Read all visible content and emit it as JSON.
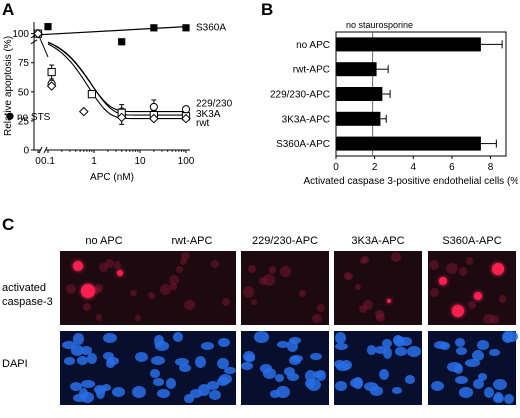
{
  "figure": {
    "panel_a": {
      "letter": "A",
      "chart_data": {
        "type": "scatter",
        "ylabel": "Relative apoptosis (%)",
        "xlabel": "APC (nM)",
        "x_scale": "log",
        "ylim": [
          0,
          110
        ],
        "y_ticks": [
          "0",
          "25",
          "50",
          "75",
          "100"
        ],
        "x_ticks": [
          "0",
          "0.1",
          "1",
          "10",
          "100"
        ],
        "series": [
          {
            "name": "S360A",
            "marker": "filled-square",
            "x": [
              0,
              0.1,
              4,
              20,
              100
            ],
            "y": [
              100,
              106,
              93,
              105,
              105
            ]
          },
          {
            "name": "229/230",
            "marker": "open-circle",
            "x": [
              0,
              0.12,
              4,
              20,
              100
            ],
            "y": [
              100,
              57,
              33,
              37,
              35
            ]
          },
          {
            "name": "3K3A",
            "marker": "open-square",
            "x": [
              0,
              0.12,
              0.9,
              4,
              20,
              100
            ],
            "y": [
              100,
              67,
              48,
              32,
              30,
              29
            ]
          },
          {
            "name": "rwt",
            "marker": "open-diamond",
            "x": [
              0,
              0.12,
              0.6,
              4,
              20,
              100
            ],
            "y": [
              100,
              55,
              33,
              28,
              27,
              27
            ]
          },
          {
            "name": "no STS",
            "marker": "filled-circle",
            "x": [
              0
            ],
            "y": [
              29
            ]
          }
        ],
        "labels": [
          "S360A",
          "229/230",
          "3K3A",
          "rwt",
          "no STS"
        ]
      }
    },
    "panel_b": {
      "letter": "B",
      "chart_data": {
        "type": "bar",
        "orientation": "horizontal",
        "categories": [
          "no APC",
          "rwt-APC",
          "229/230-APC",
          "3K3A-APC",
          "S360A-APC"
        ],
        "values": [
          7.5,
          2.1,
          2.4,
          2.3,
          7.5
        ],
        "errors": [
          1.1,
          0.6,
          0.4,
          0.3,
          0.8
        ],
        "xlabel": "Activated caspase 3-positive endothelial cells (%)",
        "x_ticks": [
          "0",
          "2",
          "4",
          "6",
          "8"
        ],
        "xlim": [
          0,
          8.8
        ],
        "reference_line": {
          "x": 1.9,
          "label": "no staurosporine"
        }
      }
    },
    "panel_c": {
      "letter": "C",
      "columns": [
        "no APC",
        "rwt-APC",
        "229/230-APC",
        "3K3A-APC",
        "S360A-APC"
      ],
      "rows": [
        "activated caspase-3",
        "DAPI"
      ]
    }
  }
}
